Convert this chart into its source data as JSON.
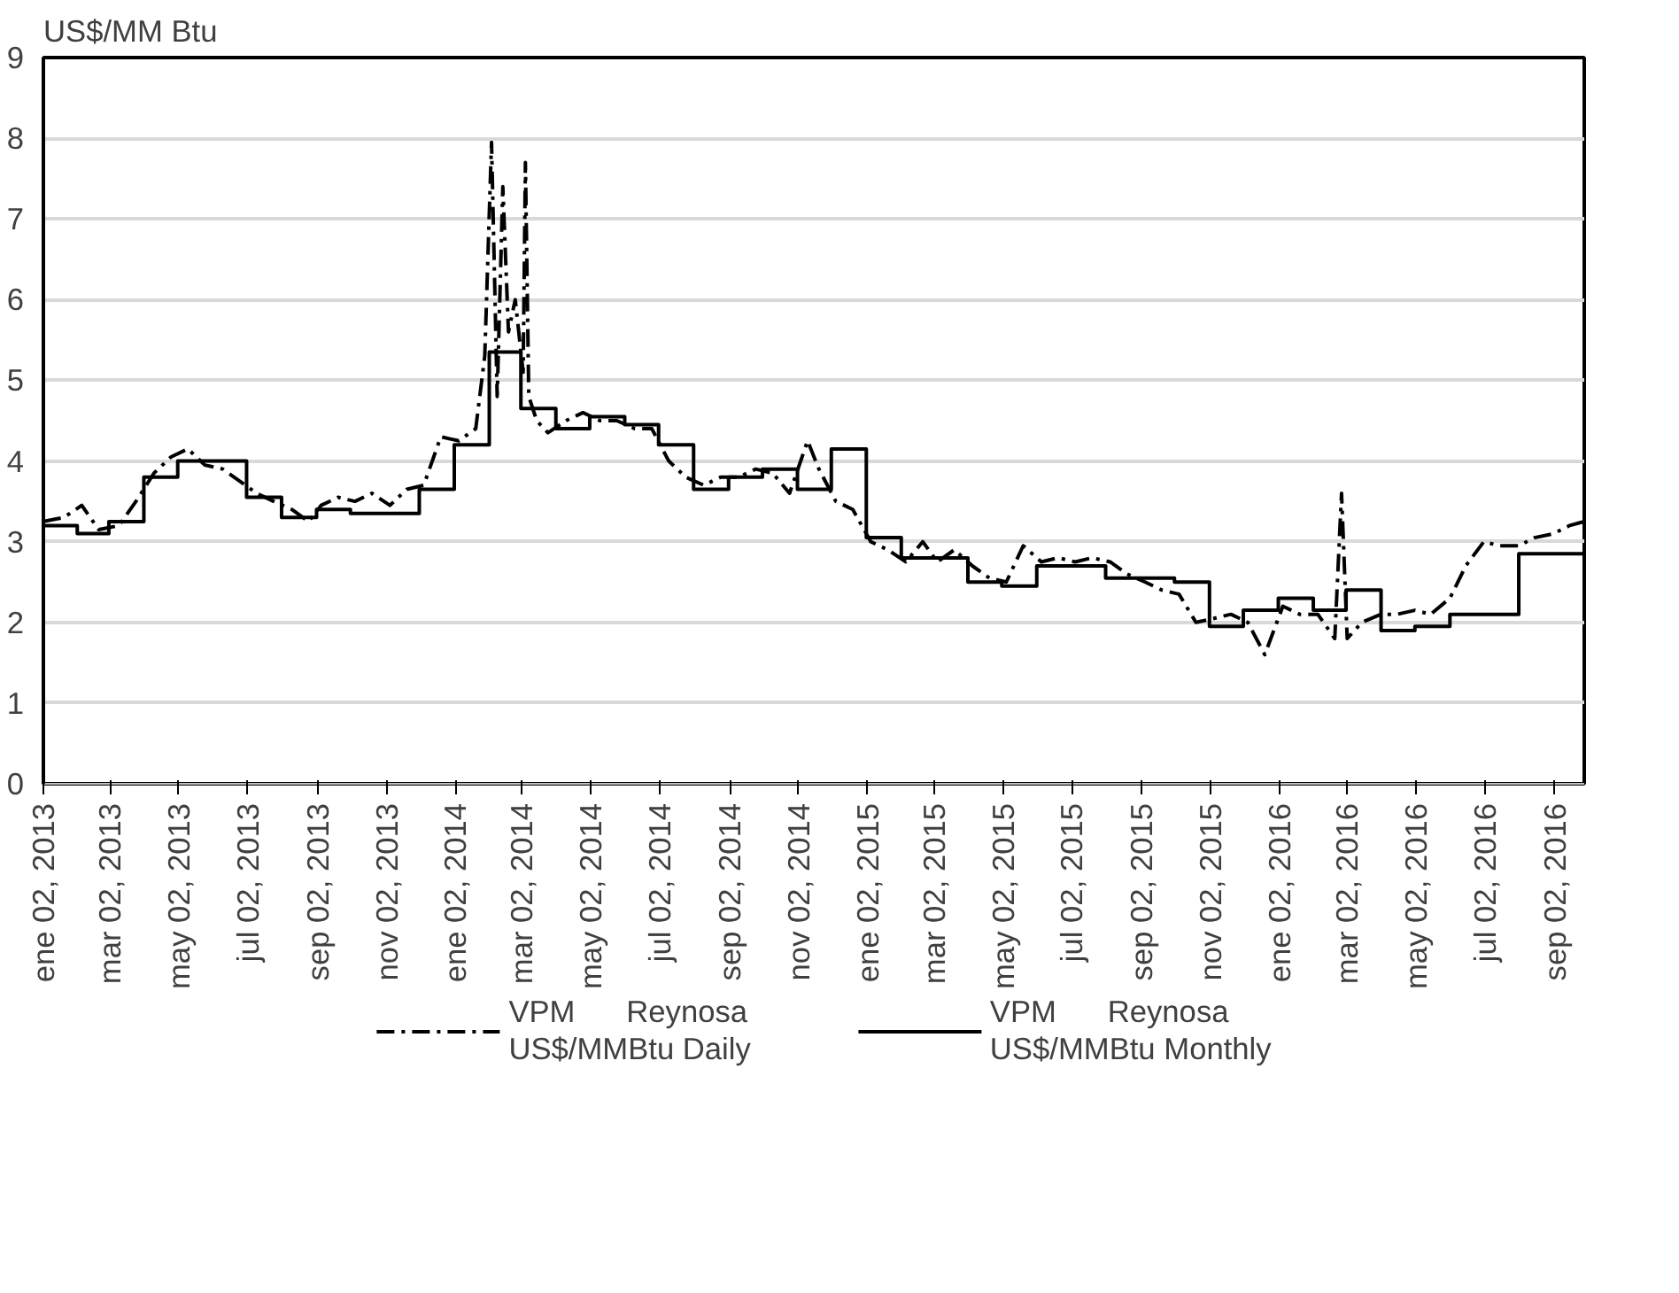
{
  "chart_data": {
    "type": "line",
    "ylabel": "US$/MM Btu",
    "xlim": [
      "2013-01-02",
      "2016-09-28"
    ],
    "ylim": [
      0,
      9
    ],
    "yticks": [
      0,
      1,
      2,
      3,
      4,
      5,
      6,
      7,
      8,
      9
    ],
    "xticks": [
      {
        "value": "2013-01-02",
        "label": "ene 02, 2013"
      },
      {
        "value": "2013-03-02",
        "label": "mar 02, 2013"
      },
      {
        "value": "2013-05-02",
        "label": "may 02, 2013"
      },
      {
        "value": "2013-07-02",
        "label": "jul 02, 2013"
      },
      {
        "value": "2013-09-02",
        "label": "sep 02, 2013"
      },
      {
        "value": "2013-11-02",
        "label": "nov 02, 2013"
      },
      {
        "value": "2014-01-02",
        "label": "ene 02, 2014"
      },
      {
        "value": "2014-03-02",
        "label": "mar 02, 2014"
      },
      {
        "value": "2014-05-02",
        "label": "may 02, 2014"
      },
      {
        "value": "2014-07-02",
        "label": "jul 02, 2014"
      },
      {
        "value": "2014-09-02",
        "label": "sep 02, 2014"
      },
      {
        "value": "2014-11-02",
        "label": "nov 02, 2014"
      },
      {
        "value": "2015-01-02",
        "label": "ene 02, 2015"
      },
      {
        "value": "2015-03-02",
        "label": "mar 02, 2015"
      },
      {
        "value": "2015-05-02",
        "label": "may 02, 2015"
      },
      {
        "value": "2015-07-02",
        "label": "jul 02, 2015"
      },
      {
        "value": "2015-09-02",
        "label": "sep 02, 2015"
      },
      {
        "value": "2015-11-02",
        "label": "nov 02, 2015"
      },
      {
        "value": "2016-01-02",
        "label": "ene 02, 2016"
      },
      {
        "value": "2016-03-02",
        "label": "mar 02, 2016"
      },
      {
        "value": "2016-05-02",
        "label": "may 02, 2016"
      },
      {
        "value": "2016-07-02",
        "label": "jul 02, 2016"
      },
      {
        "value": "2016-09-02",
        "label": "sep 02, 2016"
      }
    ],
    "grid": "y",
    "legend": "bottom",
    "series": [
      {
        "name": "VPM      Reynosa\nUS$/MMBtu Daily",
        "color": "#000000",
        "line_style": "dashed",
        "x": [
          "2013-01-02",
          "2013-01-20",
          "2013-02-05",
          "2013-02-20",
          "2013-03-10",
          "2013-03-25",
          "2013-04-10",
          "2013-04-25",
          "2013-05-10",
          "2013-05-25",
          "2013-06-10",
          "2013-06-25",
          "2013-07-10",
          "2013-07-25",
          "2013-08-10",
          "2013-08-25",
          "2013-09-05",
          "2013-09-20",
          "2013-10-05",
          "2013-10-20",
          "2013-11-05",
          "2013-11-20",
          "2013-12-05",
          "2013-12-20",
          "2014-01-05",
          "2014-01-20",
          "2014-01-28",
          "2014-02-03",
          "2014-02-08",
          "2014-02-13",
          "2014-02-18",
          "2014-02-24",
          "2014-03-03",
          "2014-03-05",
          "2014-03-08",
          "2014-03-15",
          "2014-03-25",
          "2014-04-10",
          "2014-04-25",
          "2014-05-10",
          "2014-05-25",
          "2014-06-10",
          "2014-06-25",
          "2014-07-10",
          "2014-07-25",
          "2014-08-10",
          "2014-08-25",
          "2014-09-10",
          "2014-09-25",
          "2014-10-10",
          "2014-10-25",
          "2014-11-10",
          "2014-11-20",
          "2014-12-05",
          "2014-12-20",
          "2015-01-05",
          "2015-01-20",
          "2015-02-05",
          "2015-02-20",
          "2015-03-05",
          "2015-03-20",
          "2015-04-05",
          "2015-04-20",
          "2015-05-05",
          "2015-05-20",
          "2015-06-05",
          "2015-06-20",
          "2015-07-05",
          "2015-07-20",
          "2015-08-05",
          "2015-08-20",
          "2015-09-05",
          "2015-09-20",
          "2015-10-05",
          "2015-10-20",
          "2015-11-05",
          "2015-11-20",
          "2015-12-05",
          "2015-12-20",
          "2016-01-05",
          "2016-01-20",
          "2016-02-05",
          "2016-02-20",
          "2016-02-26",
          "2016-03-02",
          "2016-03-15",
          "2016-04-01",
          "2016-04-15",
          "2016-05-01",
          "2016-05-15",
          "2016-06-01",
          "2016-06-15",
          "2016-07-01",
          "2016-07-15",
          "2016-08-01",
          "2016-08-15",
          "2016-09-01",
          "2016-09-15",
          "2016-09-28"
        ],
        "values": [
          3.25,
          3.3,
          3.45,
          3.15,
          3.2,
          3.5,
          3.85,
          4.05,
          4.15,
          3.95,
          3.9,
          3.75,
          3.6,
          3.5,
          3.4,
          3.25,
          3.45,
          3.55,
          3.5,
          3.6,
          3.45,
          3.65,
          3.7,
          4.3,
          4.25,
          4.4,
          5.3,
          7.95,
          4.8,
          7.4,
          5.6,
          6.0,
          5.1,
          7.7,
          4.8,
          4.5,
          4.35,
          4.5,
          4.6,
          4.5,
          4.5,
          4.4,
          4.4,
          4.0,
          3.8,
          3.7,
          3.8,
          3.8,
          3.9,
          3.85,
          3.6,
          4.25,
          3.9,
          3.5,
          3.4,
          3.0,
          2.9,
          2.75,
          3.0,
          2.75,
          2.9,
          2.7,
          2.55,
          2.5,
          2.95,
          2.75,
          2.8,
          2.75,
          2.8,
          2.75,
          2.6,
          2.5,
          2.4,
          2.35,
          2.0,
          2.05,
          2.1,
          2.0,
          1.6,
          2.2,
          2.1,
          2.1,
          1.8,
          3.6,
          1.8,
          2.0,
          2.1,
          2.1,
          2.15,
          2.1,
          2.3,
          2.7,
          3.0,
          2.95,
          2.95,
          3.05,
          3.1,
          3.2,
          3.25
        ]
      },
      {
        "name": "VPM      Reynosa\nUS$/MMBtu Monthly",
        "type": "step",
        "color": "#000000",
        "line_style": "solid",
        "x": [
          "2013-01-02",
          "2013-02-01",
          "2013-03-01",
          "2013-04-01",
          "2013-05-01",
          "2013-06-01",
          "2013-07-01",
          "2013-08-01",
          "2013-09-01",
          "2013-10-01",
          "2013-11-01",
          "2013-12-01",
          "2014-01-01",
          "2014-02-01",
          "2014-03-01",
          "2014-04-01",
          "2014-05-01",
          "2014-06-01",
          "2014-07-01",
          "2014-08-01",
          "2014-09-01",
          "2014-10-01",
          "2014-11-01",
          "2014-12-01",
          "2015-01-01",
          "2015-02-01",
          "2015-03-01",
          "2015-04-01",
          "2015-05-01",
          "2015-06-01",
          "2015-07-01",
          "2015-08-01",
          "2015-09-01",
          "2015-10-01",
          "2015-11-01",
          "2015-12-01",
          "2016-01-01",
          "2016-02-01",
          "2016-03-01",
          "2016-04-01",
          "2016-05-01",
          "2016-06-01",
          "2016-07-01",
          "2016-08-01",
          "2016-09-01",
          "2016-09-28"
        ],
        "values": [
          3.2,
          3.1,
          3.25,
          3.8,
          4.0,
          4.0,
          3.55,
          3.3,
          3.4,
          3.35,
          3.35,
          3.65,
          4.2,
          5.35,
          4.65,
          4.4,
          4.55,
          4.45,
          4.2,
          3.65,
          3.8,
          3.9,
          3.65,
          4.15,
          3.05,
          2.8,
          2.8,
          2.5,
          2.45,
          2.7,
          2.7,
          2.55,
          2.55,
          2.5,
          1.95,
          2.15,
          2.3,
          2.15,
          2.4,
          1.9,
          1.95,
          2.1,
          2.1,
          2.85,
          2.85,
          2.85
        ]
      }
    ]
  }
}
